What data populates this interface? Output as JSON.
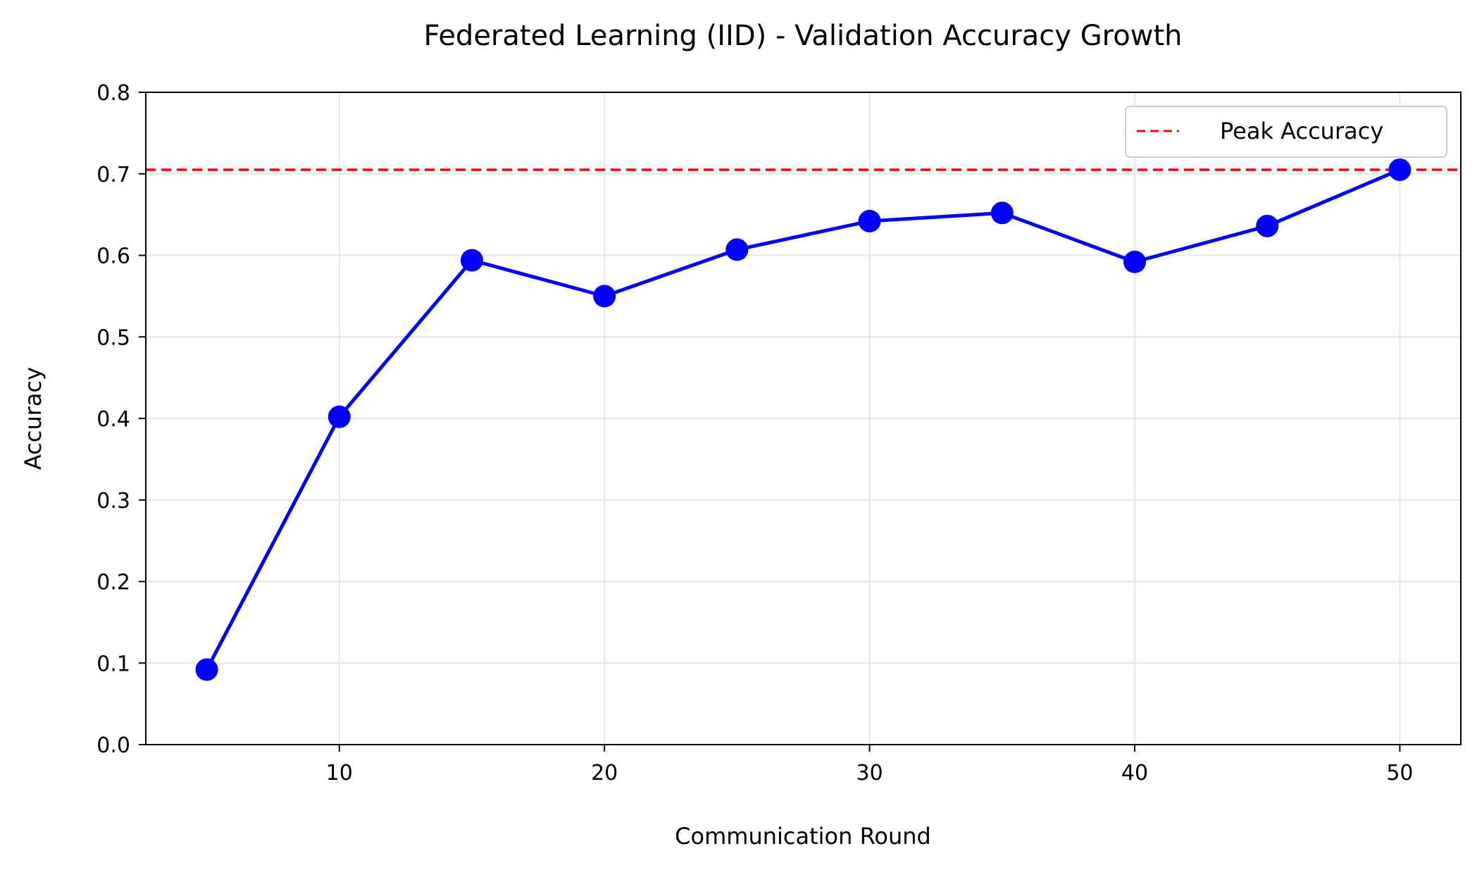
{
  "chart_data": {
    "type": "line",
    "title": "Federated Learning (IID) - Validation Accuracy Growth",
    "xlabel": "Communication Round",
    "ylabel": "Accuracy",
    "xlim": [
      2.7,
      52.3
    ],
    "ylim": [
      0.0,
      0.8
    ],
    "xticks": [
      "10",
      "20",
      "30",
      "40",
      "50"
    ],
    "yticks": [
      "0.0",
      "0.1",
      "0.2",
      "0.3",
      "0.4",
      "0.5",
      "0.6",
      "0.7",
      "0.8"
    ],
    "grid": true,
    "legend_placement": "top-right",
    "series": [
      {
        "color": "#0000ff",
        "marker": "circle",
        "x": [
          5,
          10,
          15,
          20,
          25,
          30,
          35,
          40,
          45,
          50
        ],
        "y": [
          0.092,
          0.402,
          0.594,
          0.55,
          0.607,
          0.642,
          0.652,
          0.592,
          0.636,
          0.705
        ]
      }
    ],
    "reference_lines": [
      {
        "name": "Peak Accuracy",
        "orientation": "horizontal",
        "y": 0.705,
        "color": "#ff0000",
        "style": "dashed"
      }
    ]
  }
}
